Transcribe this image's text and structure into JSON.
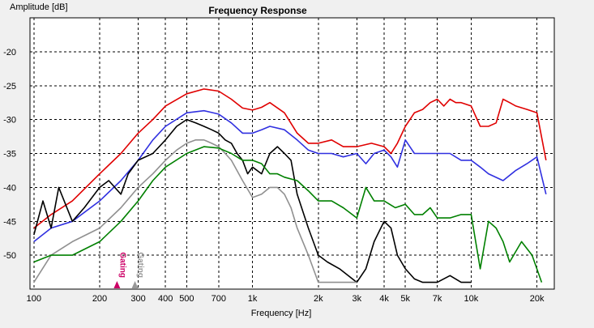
{
  "chart_data": {
    "type": "line",
    "title": "Frequency Response",
    "ylabel": "Amplitude [dB]",
    "xlabel": "Frequency [Hz]",
    "xscale": "log",
    "xlim": [
      96,
      24000
    ],
    "ylim": [
      -55,
      -15
    ],
    "grid": true,
    "x_tick_values": [
      100,
      200,
      300,
      400,
      500,
      700,
      1000,
      2000,
      3000,
      4000,
      5000,
      7000,
      10000,
      20000
    ],
    "x_tick_labels": [
      "100",
      "200",
      "300",
      "400",
      "500",
      "700",
      "1k",
      "2k",
      "3k",
      "4k",
      "5k",
      "7k",
      "10k",
      "20k"
    ],
    "y_tick_values": [
      -20,
      -25,
      -30,
      -35,
      -40,
      -45,
      -50
    ],
    "y_tick_labels": [
      "-20",
      "-25",
      "-30",
      "-35",
      "-40",
      "-45",
      "-50"
    ],
    "markers": [
      {
        "label": "Gating",
        "x": 240,
        "color": "#cc0066"
      },
      {
        "label": "Gating",
        "x": 290,
        "color": "#999999"
      }
    ],
    "series": [
      {
        "color": "#e00000",
        "x": [
          100,
          120,
          150,
          200,
          250,
          300,
          350,
          400,
          500,
          600,
          700,
          800,
          900,
          1000,
          1100,
          1200,
          1400,
          1600,
          1800,
          2000,
          2300,
          2600,
          3000,
          3500,
          4000,
          4300,
          4600,
          5000,
          5500,
          6000,
          6500,
          7000,
          7500,
          8000,
          8500,
          9000,
          10000,
          11000,
          12000,
          13000,
          14000,
          15000,
          16000,
          18000,
          20000,
          22000
        ],
        "y": [
          -46,
          -44,
          -42,
          -38,
          -35,
          -32,
          -30,
          -28,
          -26.2,
          -25.5,
          -25.8,
          -27,
          -28.3,
          -28.6,
          -28.2,
          -27.5,
          -29,
          -32,
          -33.5,
          -33.5,
          -33,
          -34,
          -34,
          -33.5,
          -34,
          -35,
          -33.5,
          -31,
          -29,
          -28.5,
          -27.5,
          -27,
          -28,
          -27,
          -27.5,
          -27.5,
          -28,
          -31,
          -31,
          -30.5,
          -27,
          -27.5,
          -28,
          -28.5,
          -29,
          -36
        ]
      },
      {
        "color": "#3030e0",
        "x": [
          100,
          120,
          150,
          200,
          250,
          300,
          350,
          400,
          500,
          600,
          700,
          800,
          900,
          1000,
          1100,
          1200,
          1400,
          1600,
          1800,
          2000,
          2300,
          2600,
          3000,
          3300,
          3600,
          4000,
          4300,
          4600,
          5000,
          5500,
          6000,
          7000,
          8000,
          9000,
          10000,
          11000,
          12000,
          14000,
          16000,
          18000,
          20000,
          22000
        ],
        "y": [
          -48,
          -46,
          -45,
          -42,
          -39,
          -36,
          -33,
          -31,
          -29,
          -28.7,
          -29.2,
          -30.5,
          -32,
          -32,
          -31.5,
          -31,
          -31.5,
          -33,
          -34.5,
          -35,
          -35,
          -35.5,
          -35,
          -36.5,
          -35,
          -34.5,
          -35.5,
          -37,
          -33,
          -35,
          -35,
          -35,
          -35,
          -36,
          -36,
          -37,
          -38,
          -39,
          -37.5,
          -36.5,
          -35.5,
          -41
        ]
      },
      {
        "color": "#000000",
        "x": [
          100,
          110,
          120,
          130,
          150,
          170,
          200,
          220,
          250,
          270,
          300,
          350,
          400,
          450,
          500,
          550,
          600,
          650,
          700,
          750,
          800,
          850,
          900,
          950,
          1000,
          1100,
          1200,
          1300,
          1400,
          1500,
          1600,
          1800,
          2000,
          2200,
          2500,
          3000,
          3300,
          3600,
          4000,
          4300,
          4600,
          5000,
          5500,
          6000,
          7000,
          8000,
          9000,
          10000
        ],
        "y": [
          -47,
          -42,
          -46,
          -40,
          -45,
          -43,
          -40,
          -39,
          -41,
          -38,
          -36,
          -35,
          -33,
          -31,
          -30,
          -30.5,
          -31,
          -31.5,
          -32,
          -33,
          -33.5,
          -35,
          -36,
          -38,
          -37,
          -38,
          -35,
          -34,
          -35,
          -36,
          -41,
          -46,
          -50,
          -51,
          -52,
          -54,
          -52,
          -48,
          -45,
          -46,
          -50,
          -52,
          -53.5,
          -54,
          -54,
          -53,
          -54,
          -54
        ]
      },
      {
        "color": "#909090",
        "x": [
          100,
          120,
          150,
          200,
          250,
          300,
          350,
          400,
          450,
          500,
          550,
          600,
          650,
          700,
          750,
          800,
          900,
          1000,
          1100,
          1200,
          1300,
          1400,
          1500,
          1600,
          1800,
          2000,
          2200,
          2500,
          3000
        ],
        "y": [
          -54,
          -50,
          -48,
          -46,
          -43,
          -40,
          -38,
          -36,
          -34.5,
          -33.5,
          -33,
          -33,
          -33.5,
          -34,
          -35,
          -36,
          -39,
          -41.5,
          -41,
          -40,
          -40,
          -41,
          -43,
          -46,
          -50,
          -54,
          -54,
          -54,
          -54
        ]
      },
      {
        "color": "#008000",
        "x": [
          100,
          120,
          150,
          200,
          250,
          300,
          350,
          400,
          500,
          600,
          700,
          800,
          900,
          1000,
          1100,
          1200,
          1300,
          1400,
          1600,
          1800,
          2000,
          2300,
          2600,
          3000,
          3300,
          3600,
          4000,
          4500,
          5000,
          5500,
          6000,
          6500,
          7000,
          8000,
          9000,
          10000,
          11000,
          12000,
          13000,
          14000,
          15000,
          17000,
          19000,
          21000
        ],
        "y": [
          -51,
          -50,
          -50,
          -48,
          -45,
          -42,
          -39,
          -37,
          -35,
          -34,
          -34.2,
          -35,
          -36,
          -36,
          -36.5,
          -38,
          -38,
          -38.5,
          -39,
          -40.5,
          -42,
          -42,
          -43,
          -44.5,
          -40,
          -42,
          -42,
          -43,
          -42.5,
          -44,
          -44,
          -43,
          -44.5,
          -44.5,
          -44,
          -44,
          -52,
          -45,
          -46,
          -48,
          -51,
          -48,
          -50,
          -54
        ]
      }
    ]
  }
}
